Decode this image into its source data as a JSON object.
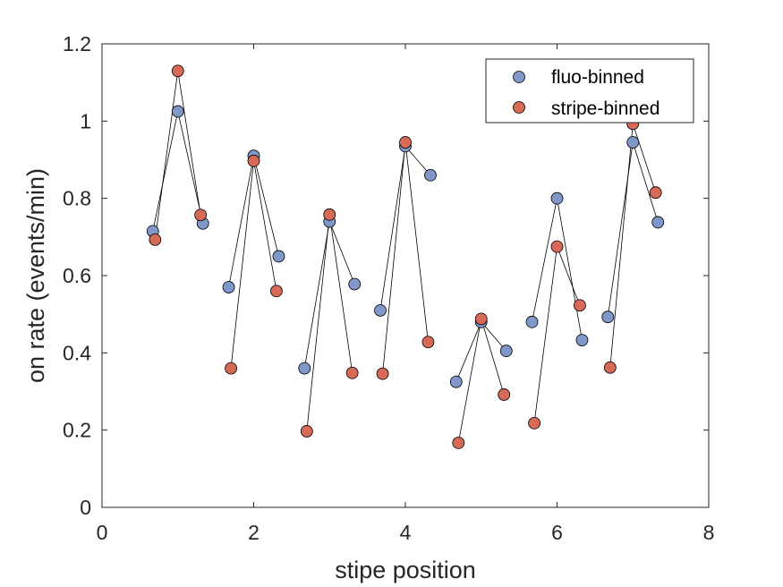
{
  "chart_data": {
    "type": "scatter",
    "xlabel": "stipe position",
    "ylabel": "on rate (events/min)",
    "xlim": [
      0,
      8
    ],
    "ylim": [
      0,
      1.2
    ],
    "xticks": [
      0,
      2,
      4,
      6,
      8
    ],
    "xtick_labels": [
      "0",
      "2",
      "4",
      "6",
      "8"
    ],
    "yticks": [
      0,
      0.2,
      0.4,
      0.6,
      0.8,
      1.0,
      1.2
    ],
    "ytick_labels": [
      "0",
      "0.2",
      "0.4",
      "0.6",
      "0.8",
      "1",
      "1.2"
    ],
    "grid": false,
    "legend_position": "top-right",
    "connect_groups_of": 3,
    "series": [
      {
        "name": "fluo-binned",
        "color": "#7f97c9",
        "x": [
          0.67,
          1.0,
          1.33,
          1.67,
          2.0,
          2.33,
          2.67,
          3.0,
          3.33,
          3.67,
          4.0,
          4.33,
          4.67,
          5.0,
          5.33,
          5.67,
          6.0,
          6.33,
          6.67,
          7.0,
          7.33
        ],
        "y": [
          0.715,
          1.025,
          0.735,
          0.57,
          0.91,
          0.65,
          0.36,
          0.74,
          0.578,
          0.51,
          0.935,
          0.86,
          0.325,
          0.48,
          0.405,
          0.48,
          0.8,
          0.433,
          0.493,
          0.945,
          0.738
        ]
      },
      {
        "name": "stripe-binned",
        "color": "#d66a57",
        "x": [
          0.7,
          1.0,
          1.3,
          1.7,
          2.0,
          2.3,
          2.7,
          3.0,
          3.3,
          3.7,
          4.0,
          4.3,
          4.7,
          5.0,
          5.3,
          5.7,
          6.0,
          6.3,
          6.7,
          7.0,
          7.3
        ],
        "y": [
          0.693,
          1.13,
          0.757,
          0.36,
          0.897,
          0.56,
          0.197,
          0.758,
          0.348,
          0.346,
          0.945,
          0.428,
          0.167,
          0.488,
          0.292,
          0.218,
          0.675,
          0.523,
          0.362,
          0.993,
          0.815
        ]
      }
    ]
  }
}
